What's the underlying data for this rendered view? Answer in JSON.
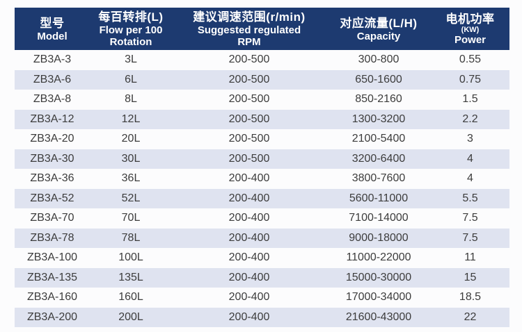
{
  "colors": {
    "header_bg": "#1d3a70",
    "header_text": "#ffffff",
    "stripe_bg": "#dfe3f0",
    "body_text": "#3c3c3c",
    "page_bg": "#fcfcfd"
  },
  "chart_data": {
    "type": "table",
    "title": "",
    "headers": [
      {
        "lines": [
          "型号",
          "Model"
        ]
      },
      {
        "lines": [
          "每百转排(L)",
          "Flow per 100",
          "Rotation"
        ]
      },
      {
        "lines": [
          "建议调速范围(r/min)",
          "Suggested regulated",
          "RPM"
        ]
      },
      {
        "lines": [
          "对应流量(L/H)",
          "Capacity"
        ]
      },
      {
        "lines": [
          "电机功率",
          "(KW)",
          "Power"
        ]
      }
    ],
    "rows": [
      [
        "ZB3A-3",
        "3L",
        "200-500",
        "300-800",
        "0.55"
      ],
      [
        "ZB3A-6",
        "6L",
        "200-500",
        "650-1600",
        "0.75"
      ],
      [
        "ZB3A-8",
        "8L",
        "200-500",
        "850-2160",
        "1.5"
      ],
      [
        "ZB3A-12",
        "12L",
        "200-500",
        "1300-3200",
        "2.2"
      ],
      [
        "ZB3A-20",
        "20L",
        "200-500",
        "2100-5400",
        "3"
      ],
      [
        "ZB3A-30",
        "30L",
        "200-500",
        "3200-6400",
        "4"
      ],
      [
        "ZB3A-36",
        "36L",
        "200-400",
        "3800-7600",
        "4"
      ],
      [
        "ZB3A-52",
        "52L",
        "200-400",
        "5600-11000",
        "5.5"
      ],
      [
        "ZB3A-70",
        "70L",
        "200-400",
        "7100-14000",
        "7.5"
      ],
      [
        "ZB3A-78",
        "78L",
        "200-400",
        "9000-18000",
        "7.5"
      ],
      [
        "ZB3A-100",
        "100L",
        "200-400",
        "11000-22000",
        "11"
      ],
      [
        "ZB3A-135",
        "135L",
        "200-400",
        "15000-30000",
        "15"
      ],
      [
        "ZB3A-160",
        "160L",
        "200-400",
        "17000-34000",
        "18.5"
      ],
      [
        "ZB3A-200",
        "200L",
        "200-400",
        "21600-43000",
        "22"
      ]
    ]
  }
}
